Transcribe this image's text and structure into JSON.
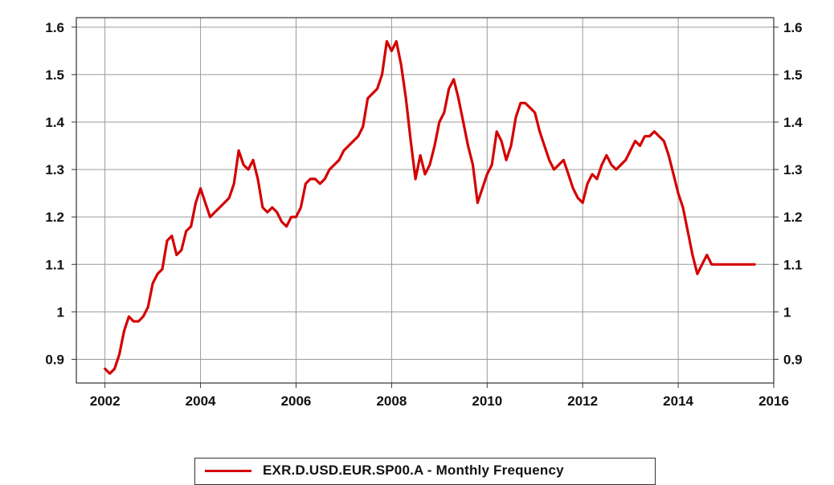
{
  "chart_data": {
    "type": "line",
    "title": "",
    "xlabel": "",
    "ylabel": "",
    "xlim": [
      2001.4,
      2016
    ],
    "ylim": [
      0.85,
      1.62
    ],
    "x_ticks": [
      2002,
      2004,
      2006,
      2008,
      2010,
      2012,
      2014,
      2016
    ],
    "x_tick_labels": [
      "2002",
      "2004",
      "2006",
      "2008",
      "2010",
      "2012",
      "2014",
      "2016"
    ],
    "y_ticks": [
      0.9,
      1.0,
      1.1,
      1.2,
      1.3,
      1.4,
      1.5,
      1.6
    ],
    "y_tick_labels": [
      "0.9",
      "1",
      "1.1",
      "1.2",
      "1.3",
      "1.4",
      "1.5",
      "1.6"
    ],
    "y_axis_sides": "left and right",
    "grid": true,
    "legend_position": "bottom-center",
    "series": [
      {
        "name": "EXR.D.USD.EUR.SP00.A - Monthly Frequency",
        "color": "#d40000",
        "x": [
          2002.0,
          2002.1,
          2002.2,
          2002.3,
          2002.4,
          2002.5,
          2002.6,
          2002.7,
          2002.8,
          2002.9,
          2003.0,
          2003.1,
          2003.2,
          2003.3,
          2003.4,
          2003.5,
          2003.6,
          2003.7,
          2003.8,
          2003.9,
          2004.0,
          2004.1,
          2004.2,
          2004.3,
          2004.4,
          2004.5,
          2004.6,
          2004.7,
          2004.8,
          2004.9,
          2005.0,
          2005.1,
          2005.2,
          2005.3,
          2005.4,
          2005.5,
          2005.6,
          2005.7,
          2005.8,
          2005.9,
          2006.0,
          2006.1,
          2006.2,
          2006.3,
          2006.4,
          2006.5,
          2006.6,
          2006.7,
          2006.8,
          2006.9,
          2007.0,
          2007.1,
          2007.2,
          2007.3,
          2007.4,
          2007.5,
          2007.6,
          2007.7,
          2007.8,
          2007.9,
          2008.0,
          2008.1,
          2008.2,
          2008.3,
          2008.4,
          2008.5,
          2008.6,
          2008.7,
          2008.8,
          2008.9,
          2009.0,
          2009.1,
          2009.2,
          2009.3,
          2009.4,
          2009.5,
          2009.6,
          2009.7,
          2009.8,
          2009.9,
          2010.0,
          2010.1,
          2010.2,
          2010.3,
          2010.4,
          2010.5,
          2010.6,
          2010.7,
          2010.8,
          2010.9,
          2011.0,
          2011.1,
          2011.2,
          2011.3,
          2011.4,
          2011.5,
          2011.6,
          2011.7,
          2011.8,
          2011.9,
          2012.0,
          2012.1,
          2012.2,
          2012.3,
          2012.4,
          2012.5,
          2012.6,
          2012.7,
          2012.8,
          2012.9,
          2013.0,
          2013.1,
          2013.2,
          2013.3,
          2013.4,
          2013.5,
          2013.6,
          2013.7,
          2013.8,
          2013.9,
          2014.0,
          2014.1,
          2014.2,
          2014.3,
          2014.4,
          2014.5,
          2014.6,
          2014.7,
          2014.8,
          2014.9,
          2015.0,
          2015.1,
          2015.2,
          2015.3,
          2015.4,
          2015.5,
          2015.6
        ],
        "values": [
          0.88,
          0.87,
          0.88,
          0.91,
          0.96,
          0.99,
          0.98,
          0.98,
          0.99,
          1.01,
          1.06,
          1.08,
          1.09,
          1.15,
          1.16,
          1.12,
          1.13,
          1.17,
          1.18,
          1.23,
          1.26,
          1.23,
          1.2,
          1.21,
          1.22,
          1.23,
          1.24,
          1.27,
          1.34,
          1.31,
          1.3,
          1.32,
          1.28,
          1.22,
          1.21,
          1.22,
          1.21,
          1.19,
          1.18,
          1.2,
          1.2,
          1.22,
          1.27,
          1.28,
          1.28,
          1.27,
          1.28,
          1.3,
          1.31,
          1.32,
          1.34,
          1.35,
          1.36,
          1.37,
          1.39,
          1.45,
          1.46,
          1.47,
          1.5,
          1.57,
          1.55,
          1.57,
          1.52,
          1.45,
          1.36,
          1.28,
          1.33,
          1.29,
          1.31,
          1.35,
          1.4,
          1.42,
          1.47,
          1.49,
          1.45,
          1.4,
          1.35,
          1.31,
          1.23,
          1.26,
          1.29,
          1.31,
          1.38,
          1.36,
          1.32,
          1.35,
          1.41,
          1.44,
          1.44,
          1.43,
          1.42,
          1.38,
          1.35,
          1.32,
          1.3,
          1.31,
          1.32,
          1.29,
          1.26,
          1.24,
          1.23,
          1.27,
          1.29,
          1.28,
          1.31,
          1.33,
          1.31,
          1.3,
          1.31,
          1.32,
          1.34,
          1.36,
          1.35,
          1.37,
          1.37,
          1.38,
          1.37,
          1.36,
          1.33,
          1.29,
          1.25,
          1.22,
          1.17,
          1.12,
          1.08,
          1.1,
          1.12,
          1.1,
          1.1,
          1.1,
          1.1,
          1.1,
          1.1,
          1.1,
          1.1,
          1.1,
          1.1
        ]
      }
    ]
  }
}
